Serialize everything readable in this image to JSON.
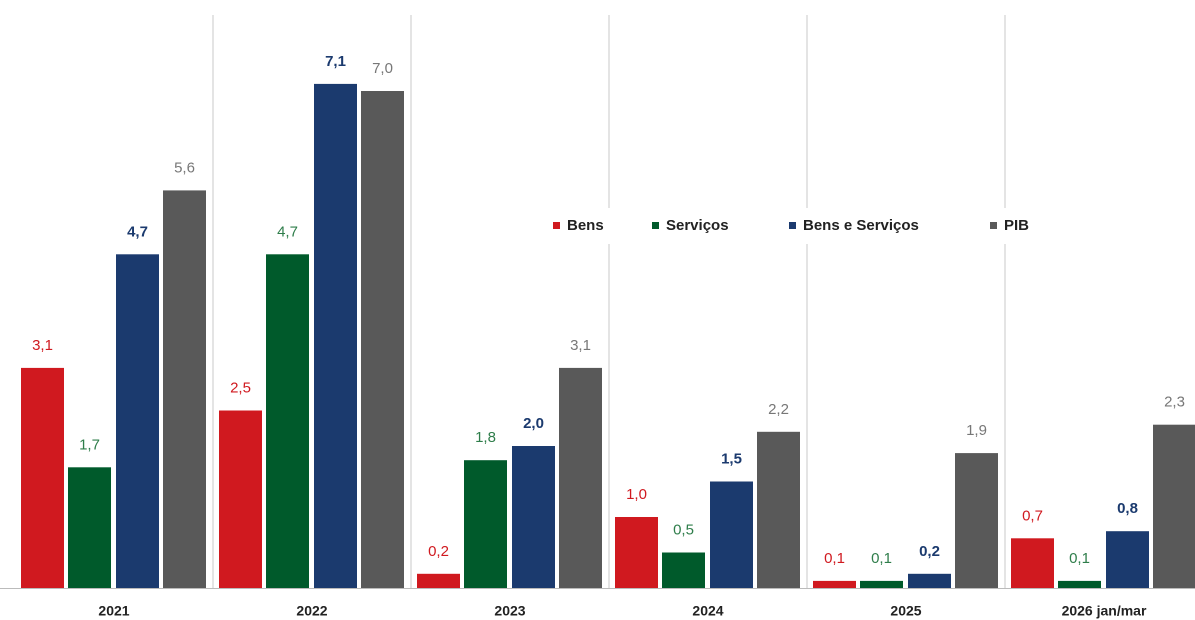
{
  "chart_data": {
    "type": "bar",
    "categories": [
      "2021",
      "2022",
      "2023",
      "2024",
      "2025",
      "2026 jan/mar"
    ],
    "series": [
      {
        "name": "Bens",
        "color": "#d0191f",
        "values": [
          3.1,
          2.5,
          0.2,
          1.0,
          0.1,
          0.7
        ],
        "value_labels": [
          "3,1",
          "2,5",
          "0,2",
          "1,0",
          "0,1",
          "0,7"
        ]
      },
      {
        "name": "Serviços",
        "color": "#005a2b",
        "values": [
          1.7,
          4.7,
          1.8,
          0.5,
          0.1,
          0.1
        ],
        "value_labels": [
          "1,7",
          "4,7",
          "1,8",
          "0,5",
          "0,1",
          "0,1"
        ]
      },
      {
        "name": "Bens e Serviços",
        "color": "#1b3a6e",
        "values": [
          4.7,
          7.1,
          2.0,
          1.5,
          0.2,
          0.8
        ],
        "value_labels": [
          "4,7",
          "7,1",
          "2,0",
          "1,5",
          "0,2",
          "0,8"
        ]
      },
      {
        "name": "PIB",
        "color": "#595959",
        "values": [
          5.6,
          7.0,
          3.1,
          2.2,
          1.9,
          2.3
        ],
        "value_labels": [
          "5,6",
          "7,0",
          "3,1",
          "2,2",
          "1,9",
          "2,3"
        ]
      }
    ],
    "ylim": [
      0,
      8
    ]
  }
}
